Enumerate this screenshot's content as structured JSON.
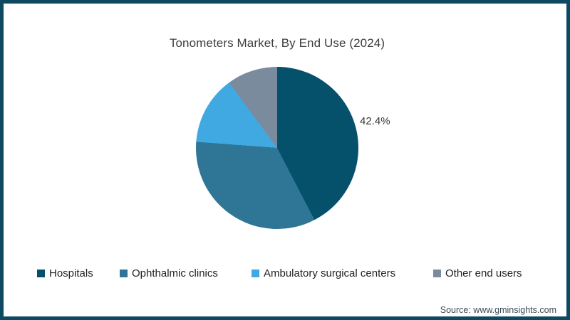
{
  "page": {
    "background": "#ffffff",
    "border_color": "#0d4961"
  },
  "chart_data": {
    "type": "pie",
    "title": "Tonometers Market, By End Use (2024)",
    "categories": [
      "Hospitals",
      "Ophthalmic clinics",
      "Ambulatory surgical centers",
      "Other end users"
    ],
    "values": [
      42.4,
      33.8,
      13.7,
      10.1
    ],
    "colors": [
      "#05506b",
      "#2f7596",
      "#41a9e1",
      "#7b8b9e"
    ],
    "data_labels": [
      "42.4%",
      "",
      "",
      ""
    ],
    "start_angle_deg": 0,
    "legend_position": "bottom"
  },
  "footer": {
    "source": "Source: www.gminsights.com"
  }
}
